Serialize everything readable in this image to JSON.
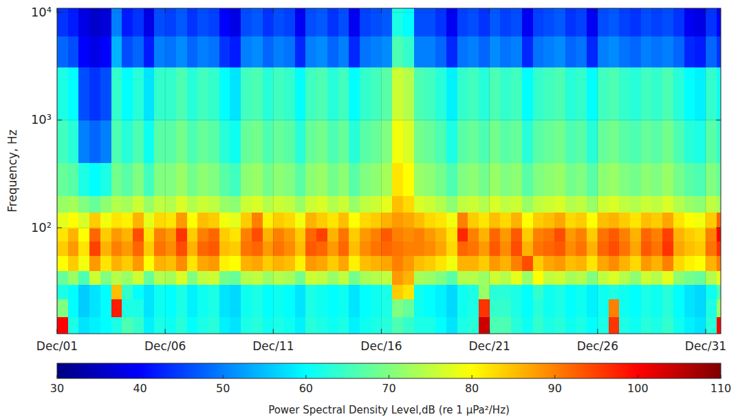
{
  "chart_data": {
    "type": "heatmap",
    "y_label": "Frequency, Hz",
    "colorbar_label": "Power Spectral Density Level,dB (re 1 μPa²/Hz)",
    "log": "y",
    "grid": true,
    "xlim": [
      1,
      31.7
    ],
    "xticks": [
      {
        "value": 1,
        "label": "Dec/01"
      },
      {
        "value": 6,
        "label": "Dec/06"
      },
      {
        "value": 11,
        "label": "Dec/11"
      },
      {
        "value": 16,
        "label": "Dec/16"
      },
      {
        "value": 21,
        "label": "Dec/21"
      },
      {
        "value": 26,
        "label": "Dec/26"
      },
      {
        "value": 31,
        "label": "Dec/31"
      }
    ],
    "ylim": [
      10.4,
      10900
    ],
    "yticks": [
      {
        "value": 100,
        "label": "10²"
      },
      {
        "value": 1000,
        "label": "10³"
      },
      {
        "value": 10000,
        "label": "10⁴"
      }
    ],
    "colorbar_lim": [
      30,
      110
    ],
    "colorbar_ticks": [
      30,
      40,
      50,
      60,
      70,
      80,
      90,
      100,
      110
    ],
    "x_bins": [
      1,
      1.5,
      2,
      2.5,
      3,
      3.5,
      4,
      4.5,
      5,
      5.5,
      6,
      6.5,
      7,
      7.5,
      8,
      8.5,
      9,
      9.5,
      10,
      10.5,
      11,
      11.5,
      12,
      12.5,
      13,
      13.5,
      14,
      14.5,
      15,
      15.5,
      16,
      16.5,
      17,
      17.5,
      18,
      18.5,
      19,
      19.5,
      20,
      20.5,
      21,
      21.5,
      22,
      22.5,
      23,
      23.5,
      24,
      24.5,
      25,
      25.5,
      26,
      26.5,
      27,
      27.5,
      28,
      28.5,
      29,
      29.5,
      30,
      30.5,
      31,
      31.5,
      31.7
    ],
    "y_bins": [
      10.4,
      15,
      22,
      30,
      40,
      55,
      75,
      100,
      140,
      200,
      400,
      1000,
      3100,
      6000,
      10900
    ],
    "values": [
      [
        100,
        62,
        58,
        59,
        60,
        62,
        66,
        64,
        59,
        62,
        61,
        63,
        60,
        62,
        63,
        59,
        58,
        62,
        63,
        61,
        62,
        61,
        59,
        63,
        62,
        61,
        62,
        59,
        61,
        62,
        63,
        66,
        64,
        62,
        62,
        60,
        58,
        62,
        63,
        104,
        66,
        66,
        63,
        61,
        64,
        62,
        63,
        61,
        62,
        60,
        62,
        96,
        62,
        61,
        63,
        62,
        64,
        61,
        59,
        58,
        63,
        100
      ],
      [
        70,
        60,
        56,
        58,
        60,
        98,
        62,
        62,
        58,
        61,
        60,
        62,
        59,
        61,
        62,
        58,
        57,
        61,
        62,
        60,
        61,
        60,
        58,
        62,
        61,
        60,
        61,
        58,
        60,
        61,
        62,
        70,
        68,
        61,
        60,
        59,
        57,
        61,
        62,
        96,
        64,
        64,
        62,
        60,
        63,
        61,
        62,
        60,
        61,
        59,
        61,
        90,
        61,
        60,
        62,
        61,
        63,
        60,
        58,
        57,
        62,
        72
      ],
      [
        62,
        60,
        56,
        58,
        60,
        85,
        64,
        60,
        58,
        61,
        60,
        62,
        59,
        61,
        62,
        58,
        57,
        61,
        62,
        60,
        61,
        60,
        58,
        62,
        61,
        60,
        61,
        58,
        60,
        61,
        62,
        84,
        82,
        61,
        60,
        59,
        57,
        61,
        62,
        72,
        63,
        63,
        62,
        60,
        64,
        61,
        62,
        60,
        61,
        59,
        61,
        62,
        61,
        60,
        62,
        61,
        63,
        60,
        58,
        57,
        61,
        66
      ],
      [
        68,
        72,
        66,
        76,
        70,
        74,
        72,
        76,
        68,
        74,
        73,
        77,
        70,
        75,
        76,
        69,
        68,
        74,
        75,
        72,
        74,
        73,
        69,
        76,
        75,
        72,
        75,
        69,
        73,
        74,
        75,
        88,
        86,
        73,
        72,
        70,
        67,
        74,
        74,
        72,
        76,
        74,
        78,
        72,
        80,
        75,
        76,
        73,
        74,
        70,
        75,
        77,
        74,
        71,
        76,
        74,
        78,
        71,
        69,
        68,
        74,
        78
      ],
      [
        80,
        84,
        79,
        88,
        82,
        86,
        84,
        88,
        80,
        86,
        85,
        89,
        82,
        87,
        88,
        81,
        80,
        86,
        87,
        84,
        86,
        85,
        81,
        88,
        87,
        84,
        87,
        81,
        85,
        86,
        87,
        90,
        88,
        85,
        84,
        82,
        79,
        86,
        86,
        84,
        88,
        86,
        90,
        94,
        84,
        87,
        88,
        85,
        86,
        82,
        87,
        89,
        86,
        83,
        88,
        86,
        90,
        83,
        81,
        80,
        86,
        90
      ],
      [
        84,
        88,
        82,
        95,
        86,
        90,
        88,
        92,
        84,
        91,
        89,
        94,
        86,
        92,
        93,
        85,
        84,
        91,
        92,
        88,
        91,
        89,
        85,
        93,
        92,
        88,
        92,
        85,
        89,
        91,
        92,
        91,
        90,
        90,
        89,
        87,
        83,
        92,
        91,
        88,
        93,
        89,
        94,
        86,
        91,
        92,
        93,
        89,
        91,
        86,
        92,
        94,
        91,
        87,
        93,
        91,
        96,
        87,
        85,
        84,
        91,
        96
      ],
      [
        82,
        86,
        80,
        92,
        84,
        88,
        86,
        94,
        82,
        90,
        88,
        96,
        84,
        90,
        92,
        84,
        82,
        90,
        94,
        86,
        90,
        88,
        84,
        92,
        95,
        86,
        91,
        84,
        88,
        90,
        93,
        90,
        89,
        90,
        88,
        86,
        82,
        97,
        90,
        86,
        92,
        88,
        93,
        84,
        90,
        91,
        94,
        88,
        90,
        84,
        91,
        93,
        90,
        86,
        92,
        90,
        95,
        86,
        84,
        83,
        90,
        100
      ],
      [
        78,
        80,
        77,
        84,
        79,
        82,
        81,
        86,
        78,
        83,
        82,
        88,
        80,
        85,
        84,
        79,
        78,
        84,
        90,
        81,
        84,
        83,
        79,
        86,
        84,
        82,
        85,
        80,
        83,
        84,
        86,
        88,
        87,
        85,
        83,
        82,
        79,
        90,
        84,
        82,
        85,
        83,
        86,
        80,
        84,
        85,
        87,
        83,
        84,
        80,
        85,
        86,
        84,
        82,
        85,
        84,
        87,
        82,
        80,
        79,
        84,
        92
      ],
      [
        72,
        73,
        70,
        68,
        71,
        74,
        73,
        76,
        72,
        75,
        74,
        77,
        74,
        76,
        75,
        72,
        71,
        76,
        77,
        74,
        76,
        75,
        72,
        76,
        77,
        74,
        76,
        72,
        75,
        76,
        78,
        85,
        83,
        77,
        76,
        74,
        71,
        75,
        76,
        74,
        77,
        75,
        76,
        72,
        75,
        76,
        77,
        74,
        75,
        72,
        76,
        77,
        75,
        74,
        76,
        75,
        77,
        74,
        72,
        71,
        75,
        73
      ],
      [
        68,
        67,
        62,
        60,
        62,
        69,
        67,
        70,
        65,
        70,
        70,
        72,
        69,
        71,
        70,
        67,
        65,
        71,
        72,
        69,
        71,
        70,
        67,
        71,
        72,
        69,
        71,
        67,
        70,
        71,
        73,
        82,
        80,
        72,
        71,
        69,
        66,
        70,
        71,
        69,
        72,
        70,
        71,
        67,
        70,
        71,
        72,
        69,
        70,
        67,
        71,
        72,
        70,
        69,
        71,
        70,
        72,
        69,
        67,
        66,
        70,
        68
      ],
      [
        65,
        63,
        50,
        48,
        50,
        66,
        63,
        66,
        61,
        67,
        67,
        69,
        66,
        68,
        67,
        63,
        61,
        68,
        69,
        66,
        68,
        67,
        63,
        68,
        69,
        66,
        68,
        63,
        67,
        68,
        70,
        79,
        77,
        69,
        68,
        66,
        62,
        67,
        68,
        66,
        69,
        67,
        68,
        63,
        67,
        68,
        69,
        66,
        67,
        63,
        68,
        69,
        67,
        66,
        68,
        67,
        69,
        66,
        63,
        62,
        67,
        64
      ],
      [
        62,
        60,
        46,
        44,
        46,
        64,
        60,
        63,
        58,
        64,
        64,
        66,
        63,
        65,
        64,
        60,
        58,
        65,
        66,
        63,
        65,
        64,
        60,
        65,
        66,
        63,
        65,
        60,
        64,
        65,
        67,
        76,
        74,
        66,
        65,
        63,
        59,
        64,
        65,
        63,
        66,
        64,
        65,
        60,
        64,
        65,
        66,
        63,
        64,
        60,
        65,
        66,
        64,
        63,
        65,
        64,
        66,
        63,
        60,
        59,
        64,
        61
      ],
      [
        48,
        46,
        40,
        38,
        40,
        54,
        46,
        48,
        42,
        50,
        49,
        51,
        48,
        50,
        49,
        44,
        42,
        50,
        51,
        48,
        50,
        49,
        43,
        50,
        51,
        48,
        50,
        43,
        49,
        50,
        51,
        66,
        64,
        50,
        50,
        48,
        43,
        49,
        50,
        48,
        51,
        49,
        50,
        43,
        49,
        50,
        51,
        48,
        49,
        43,
        50,
        51,
        49,
        48,
        50,
        49,
        50,
        48,
        43,
        42,
        48,
        44
      ],
      [
        44,
        42,
        38,
        36,
        37,
        50,
        42,
        44,
        38,
        46,
        45,
        47,
        44,
        46,
        45,
        40,
        38,
        46,
        47,
        44,
        46,
        45,
        39,
        46,
        47,
        44,
        46,
        39,
        45,
        46,
        47,
        62,
        60,
        46,
        46,
        44,
        39,
        45,
        46,
        44,
        47,
        45,
        46,
        39,
        45,
        46,
        47,
        44,
        45,
        39,
        46,
        47,
        45,
        44,
        46,
        45,
        46,
        44,
        39,
        38,
        44,
        40
      ]
    ]
  }
}
